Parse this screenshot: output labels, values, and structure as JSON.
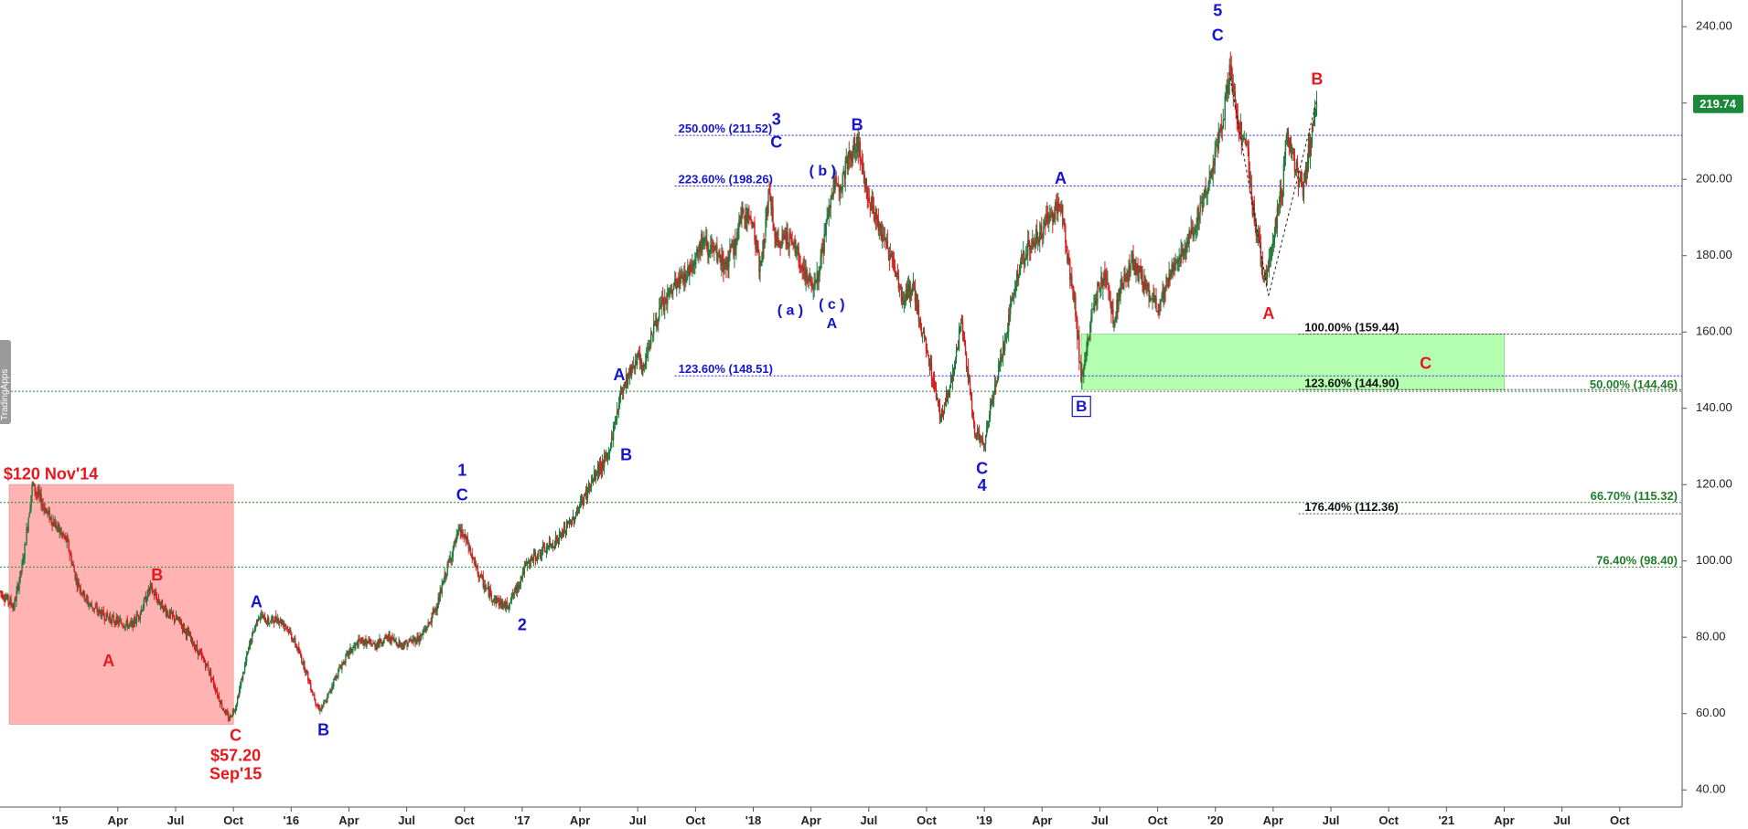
{
  "brand": "TradingApps",
  "chart_data": {
    "type": "candlestick",
    "yaxis": {
      "ticks": [
        40,
        60,
        80,
        100,
        120,
        140,
        160,
        180,
        200,
        220,
        240
      ],
      "labels": [
        "40.00",
        "60.00",
        "80.00",
        "100.00",
        "120.00",
        "140.00",
        "160.00",
        "180.00",
        "200.00",
        "",
        "240.00"
      ],
      "range": [
        35.5,
        247
      ]
    },
    "xaxis": {
      "ticks": [
        {
          "t": 2015.0,
          "label": "'15"
        },
        {
          "t": 2015.25,
          "label": "Apr"
        },
        {
          "t": 2015.5,
          "label": "Jul"
        },
        {
          "t": 2015.75,
          "label": "Oct"
        },
        {
          "t": 2016.0,
          "label": "'16"
        },
        {
          "t": 2016.25,
          "label": "Apr"
        },
        {
          "t": 2016.5,
          "label": "Jul"
        },
        {
          "t": 2016.75,
          "label": "Oct"
        },
        {
          "t": 2017.0,
          "label": "'17"
        },
        {
          "t": 2017.25,
          "label": "Apr"
        },
        {
          "t": 2017.5,
          "label": "Jul"
        },
        {
          "t": 2017.75,
          "label": "Oct"
        },
        {
          "t": 2018.0,
          "label": "'18"
        },
        {
          "t": 2018.25,
          "label": "Apr"
        },
        {
          "t": 2018.5,
          "label": "Jul"
        },
        {
          "t": 2018.75,
          "label": "Oct"
        },
        {
          "t": 2019.0,
          "label": "'19"
        },
        {
          "t": 2019.25,
          "label": "Apr"
        },
        {
          "t": 2019.5,
          "label": "Jul"
        },
        {
          "t": 2019.75,
          "label": "Oct"
        },
        {
          "t": 2020.0,
          "label": "'20"
        },
        {
          "t": 2020.25,
          "label": "Apr"
        },
        {
          "t": 2020.5,
          "label": "Jul"
        },
        {
          "t": 2020.75,
          "label": "Oct"
        },
        {
          "t": 2021.0,
          "label": "'21"
        },
        {
          "t": 2021.25,
          "label": "Apr"
        },
        {
          "t": 2021.5,
          "label": "Jul"
        },
        {
          "t": 2021.75,
          "label": "Oct"
        }
      ],
      "range": [
        2014.74,
        2022.02
      ]
    },
    "last_price": {
      "value": 219.74,
      "label": "219.74",
      "color": "#1a8a3a"
    },
    "price_path": [
      [
        2014.74,
        92
      ],
      [
        2014.8,
        88
      ],
      [
        2014.84,
        100
      ],
      [
        2014.88,
        120
      ],
      [
        2014.95,
        112
      ],
      [
        2015.03,
        105
      ],
      [
        2015.07,
        95
      ],
      [
        2015.12,
        89
      ],
      [
        2015.18,
        86
      ],
      [
        2015.25,
        84
      ],
      [
        2015.31,
        83
      ],
      [
        2015.35,
        87
      ],
      [
        2015.39,
        93
      ],
      [
        2015.42,
        90
      ],
      [
        2015.47,
        86
      ],
      [
        2015.52,
        84
      ],
      [
        2015.56,
        80
      ],
      [
        2015.6,
        76
      ],
      [
        2015.64,
        72
      ],
      [
        2015.67,
        67
      ],
      [
        2015.7,
        62
      ],
      [
        2015.73,
        58.5
      ],
      [
        2015.76,
        62
      ],
      [
        2015.79,
        70
      ],
      [
        2015.82,
        78
      ],
      [
        2015.86,
        86
      ],
      [
        2015.9,
        84
      ],
      [
        2015.94,
        85
      ],
      [
        2015.98,
        83
      ],
      [
        2016.02,
        78
      ],
      [
        2016.06,
        72
      ],
      [
        2016.09,
        66
      ],
      [
        2016.12,
        61
      ],
      [
        2016.15,
        63
      ],
      [
        2016.18,
        68
      ],
      [
        2016.22,
        73
      ],
      [
        2016.25,
        76
      ],
      [
        2016.3,
        79
      ],
      [
        2016.36,
        78
      ],
      [
        2016.42,
        80
      ],
      [
        2016.48,
        78
      ],
      [
        2016.52,
        79
      ],
      [
        2016.56,
        80
      ],
      [
        2016.6,
        84
      ],
      [
        2016.64,
        90
      ],
      [
        2016.67,
        97
      ],
      [
        2016.7,
        103
      ],
      [
        2016.73,
        108
      ],
      [
        2016.76,
        105
      ],
      [
        2016.8,
        98
      ],
      [
        2016.84,
        93
      ],
      [
        2016.88,
        90
      ],
      [
        2016.93,
        88
      ],
      [
        2016.97,
        92
      ],
      [
        2017.01,
        98
      ],
      [
        2017.05,
        101
      ],
      [
        2017.1,
        103
      ],
      [
        2017.16,
        106
      ],
      [
        2017.22,
        111
      ],
      [
        2017.28,
        118
      ],
      [
        2017.33,
        124
      ],
      [
        2017.37,
        127
      ],
      [
        2017.4,
        136
      ],
      [
        2017.43,
        145
      ],
      [
        2017.47,
        150
      ],
      [
        2017.5,
        154
      ],
      [
        2017.52,
        149
      ],
      [
        2017.55,
        158
      ],
      [
        2017.6,
        166
      ],
      [
        2017.66,
        172
      ],
      [
        2017.72,
        176
      ],
      [
        2017.78,
        184
      ],
      [
        2017.84,
        180
      ],
      [
        2017.88,
        177
      ],
      [
        2017.92,
        183
      ],
      [
        2017.96,
        192
      ],
      [
        2018.0,
        188
      ],
      [
        2018.03,
        176
      ],
      [
        2018.07,
        197
      ],
      [
        2018.1,
        182
      ],
      [
        2018.14,
        186
      ],
      [
        2018.18,
        182
      ],
      [
        2018.22,
        176
      ],
      [
        2018.25,
        172
      ],
      [
        2018.28,
        175
      ],
      [
        2018.31,
        185
      ],
      [
        2018.34,
        197
      ],
      [
        2018.38,
        200
      ],
      [
        2018.42,
        206
      ],
      [
        2018.45,
        210
      ],
      [
        2018.48,
        200
      ],
      [
        2018.52,
        192
      ],
      [
        2018.56,
        185
      ],
      [
        2018.61,
        178
      ],
      [
        2018.65,
        168
      ],
      [
        2018.69,
        172
      ],
      [
        2018.73,
        160
      ],
      [
        2018.77,
        150
      ],
      [
        2018.81,
        138
      ],
      [
        2018.84,
        143
      ],
      [
        2018.87,
        150
      ],
      [
        2018.9,
        163
      ],
      [
        2018.93,
        148
      ],
      [
        2018.96,
        134
      ],
      [
        2019.0,
        130
      ],
      [
        2019.04,
        145
      ],
      [
        2019.09,
        158
      ],
      [
        2019.14,
        175
      ],
      [
        2019.19,
        182
      ],
      [
        2019.24,
        186
      ],
      [
        2019.28,
        190
      ],
      [
        2019.33,
        194
      ],
      [
        2019.36,
        180
      ],
      [
        2019.39,
        168
      ],
      [
        2019.42,
        148
      ],
      [
        2019.45,
        158
      ],
      [
        2019.49,
        171
      ],
      [
        2019.53,
        175
      ],
      [
        2019.56,
        162
      ],
      [
        2019.59,
        172
      ],
      [
        2019.64,
        178
      ],
      [
        2019.7,
        172
      ],
      [
        2019.75,
        166
      ],
      [
        2019.8,
        175
      ],
      [
        2019.85,
        180
      ],
      [
        2019.9,
        186
      ],
      [
        2019.95,
        196
      ],
      [
        2019.99,
        203
      ],
      [
        2020.03,
        214
      ],
      [
        2020.06,
        228
      ],
      [
        2020.08,
        223
      ],
      [
        2020.11,
        213
      ],
      [
        2020.14,
        206
      ],
      [
        2020.16,
        193
      ],
      [
        2020.19,
        183
      ],
      [
        2020.21,
        172
      ],
      [
        2020.23,
        178
      ],
      [
        2020.26,
        188
      ],
      [
        2020.29,
        198
      ],
      [
        2020.31,
        213
      ],
      [
        2020.33,
        207
      ],
      [
        2020.36,
        200
      ],
      [
        2020.38,
        196
      ],
      [
        2020.4,
        206
      ],
      [
        2020.42,
        212
      ],
      [
        2020.44,
        219.74
      ]
    ],
    "fib_lines": [
      {
        "value": 211.52,
        "label": "250.00% (211.52)",
        "style": "blue",
        "x_start": 2017.66,
        "label_x": 2017.66
      },
      {
        "value": 198.26,
        "label": "223.60% (198.26)",
        "style": "blue",
        "x_start": 2017.66,
        "label_x": 2017.66
      },
      {
        "value": 148.51,
        "label": "123.60% (148.51)",
        "style": "blue",
        "x_start": 2017.66,
        "label_x": 2017.66
      },
      {
        "value": 159.44,
        "label": "100.00% (159.44)",
        "style": "black",
        "x_start": 2020.36,
        "label_x": 2020.37
      },
      {
        "value": 144.9,
        "label": "123.60% (144.90)",
        "style": "black",
        "x_start": 2020.36,
        "label_x": 2020.37
      },
      {
        "value": 112.36,
        "label": "176.40% (112.36)",
        "style": "black",
        "x_start": 2020.36,
        "label_x": 2020.37
      },
      {
        "value": 144.46,
        "label": "50.00% (144.46)",
        "style": "green",
        "x_start": 2014.74,
        "label_x": 2021.7
      },
      {
        "value": 115.32,
        "label": "66.70% (115.32)",
        "style": "green",
        "x_start": 2014.74,
        "label_x": 2021.7
      },
      {
        "value": 98.4,
        "label": "76.40% (98.40)",
        "style": "green",
        "x_start": 2014.74,
        "label_x": 2021.7
      }
    ],
    "boxes": [
      {
        "name": "red-correction-box",
        "t0": 2014.78,
        "t1": 2015.75,
        "v0": 57.2,
        "v1": 120,
        "fill": "#ffb3b3"
      },
      {
        "name": "green-target-box",
        "t0": 2019.42,
        "t1": 2021.25,
        "v0": 144.9,
        "v1": 159.44,
        "fill": "#b5ffb0"
      }
    ],
    "dotted_lines": [
      {
        "t0": 2020.06,
        "v0": 228,
        "t1": 2020.23,
        "v1": 169.5
      },
      {
        "t0": 2020.23,
        "v0": 169.5,
        "t1": 2020.44,
        "v1": 221
      }
    ],
    "annotations": [
      {
        "text": "$120  Nov'14",
        "t": 2014.96,
        "v": 122.5,
        "color": "red",
        "size": 18
      },
      {
        "text": "A",
        "t": 2015.21,
        "v": 73.5,
        "color": "red",
        "size": 18
      },
      {
        "text": "B",
        "t": 2015.42,
        "v": 96,
        "color": "red",
        "size": 18
      },
      {
        "text": "C",
        "t": 2015.76,
        "v": 54,
        "color": "red",
        "size": 18
      },
      {
        "text": "$57.20",
        "t": 2015.76,
        "v": 48.7,
        "color": "red",
        "size": 18
      },
      {
        "text": "Sep'15",
        "t": 2015.76,
        "v": 44,
        "color": "red",
        "size": 18
      },
      {
        "text": "A",
        "t": 2015.85,
        "v": 89,
        "color": "blue",
        "size": 18
      },
      {
        "text": "B",
        "t": 2016.14,
        "v": 55.5,
        "color": "blue",
        "size": 18
      },
      {
        "text": "1",
        "t": 2016.74,
        "v": 123.5,
        "color": "blue",
        "size": 18
      },
      {
        "text": "C",
        "t": 2016.74,
        "v": 117,
        "color": "blue",
        "size": 18
      },
      {
        "text": "2",
        "t": 2017.0,
        "v": 83,
        "color": "blue",
        "size": 18
      },
      {
        "text": "B",
        "t": 2017.45,
        "v": 127.5,
        "color": "blue",
        "size": 18
      },
      {
        "text": "A",
        "t": 2017.42,
        "v": 148.5,
        "color": "blue",
        "size": 18
      },
      {
        "text": "3",
        "t": 2018.1,
        "v": 215.5,
        "color": "blue",
        "size": 18
      },
      {
        "text": "C",
        "t": 2018.1,
        "v": 209.5,
        "color": "blue",
        "size": 18
      },
      {
        "text": "( a )",
        "t": 2018.16,
        "v": 165.5,
        "color": "blue",
        "size": 16
      },
      {
        "text": "( b )",
        "t": 2018.3,
        "v": 202,
        "color": "blue",
        "size": 16
      },
      {
        "text": "( c )",
        "t": 2018.34,
        "v": 167,
        "color": "blue",
        "size": 16
      },
      {
        "text": "A",
        "t": 2018.34,
        "v": 162,
        "color": "blue",
        "size": 16
      },
      {
        "text": "B",
        "t": 2018.45,
        "v": 214,
        "color": "blue",
        "size": 18
      },
      {
        "text": "C",
        "t": 2018.99,
        "v": 124,
        "color": "blue",
        "size": 18
      },
      {
        "text": "4",
        "t": 2018.99,
        "v": 119.5,
        "color": "blue",
        "size": 18
      },
      {
        "text": "A",
        "t": 2019.33,
        "v": 200,
        "color": "blue",
        "size": 18
      },
      {
        "text": "5",
        "t": 2020.01,
        "v": 244,
        "color": "blue",
        "size": 18
      },
      {
        "text": "C",
        "t": 2020.01,
        "v": 237.5,
        "color": "blue",
        "size": 18
      },
      {
        "text": "A",
        "t": 2020.23,
        "v": 164.5,
        "color": "red",
        "size": 18
      },
      {
        "text": "B",
        "t": 2020.44,
        "v": 226,
        "color": "red",
        "size": 18
      },
      {
        "text": "C",
        "t": 2020.91,
        "v": 151.5,
        "color": "red",
        "size": 18
      }
    ],
    "boxed_label": {
      "text": "B",
      "t": 2019.42,
      "v": 140.5,
      "color": "blue"
    }
  }
}
